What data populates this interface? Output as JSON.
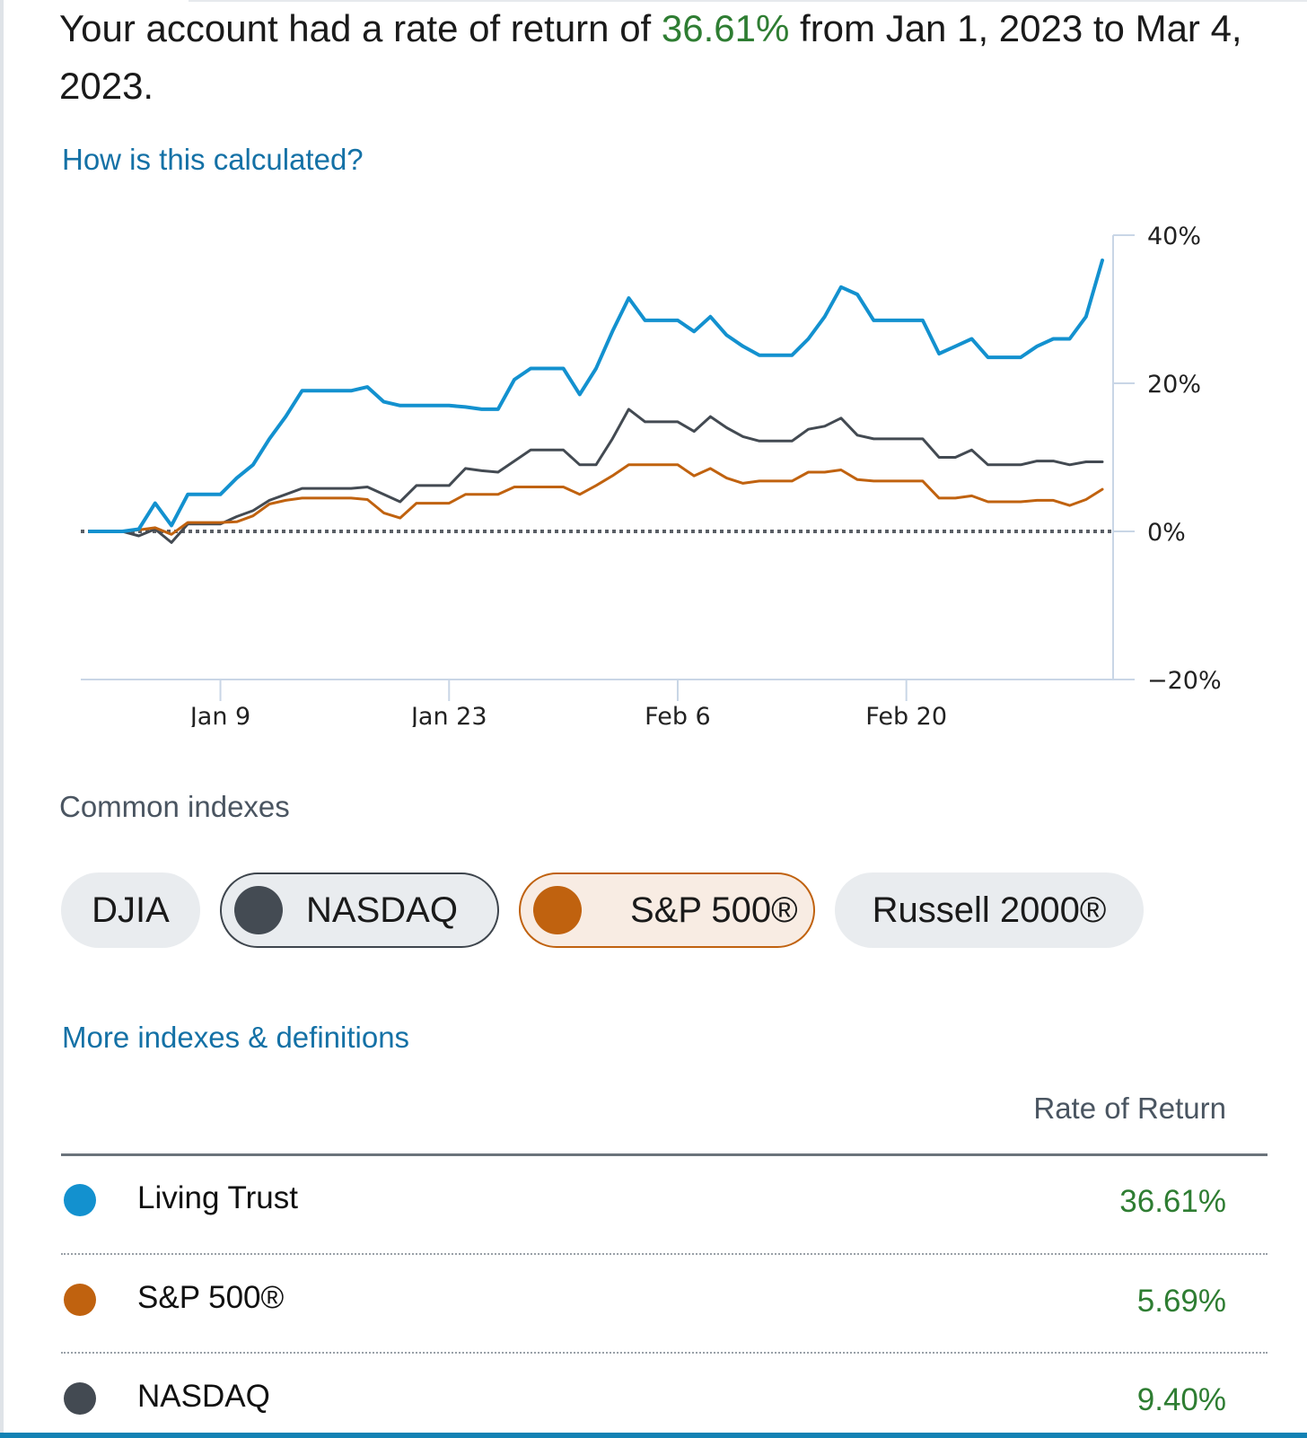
{
  "summary": {
    "prefix": "Your account had a rate of return of ",
    "rate": "36.61%",
    "suffix": " from Jan 1, 2023 to Mar 4, 2023."
  },
  "links": {
    "how_calculated": "How is this calculated?",
    "more_indexes": "More indexes & definitions"
  },
  "colors": {
    "living_trust": "#1391cf",
    "sp500": "#c0620f",
    "nasdaq": "#434a52",
    "positive": "#2e7d32",
    "link": "#1471a6"
  },
  "chart_data": {
    "type": "line",
    "ylim": [
      -20,
      40
    ],
    "yticks": [
      "40%",
      "20%",
      "0%",
      "−20%"
    ],
    "xticks": [
      "Jan 9",
      "Jan 23",
      "Feb 6",
      "Feb 20"
    ],
    "x": [
      "Jan 1",
      "Jan 2",
      "Jan 3",
      "Jan 4",
      "Jan 5",
      "Jan 6",
      "Jan 7",
      "Jan 8",
      "Jan 9",
      "Jan 10",
      "Jan 11",
      "Jan 12",
      "Jan 13",
      "Jan 14",
      "Jan 15",
      "Jan 16",
      "Jan 17",
      "Jan 18",
      "Jan 19",
      "Jan 20",
      "Jan 21",
      "Jan 22",
      "Jan 23",
      "Jan 24",
      "Jan 25",
      "Jan 26",
      "Jan 27",
      "Jan 28",
      "Jan 29",
      "Jan 30",
      "Jan 31",
      "Feb 1",
      "Feb 2",
      "Feb 3",
      "Feb 4",
      "Feb 5",
      "Feb 6",
      "Feb 7",
      "Feb 8",
      "Feb 9",
      "Feb 10",
      "Feb 11",
      "Feb 12",
      "Feb 13",
      "Feb 14",
      "Feb 15",
      "Feb 16",
      "Feb 17",
      "Feb 18",
      "Feb 19",
      "Feb 20",
      "Feb 21",
      "Feb 22",
      "Feb 23",
      "Feb 24",
      "Feb 25",
      "Feb 26",
      "Feb 27",
      "Feb 28",
      "Mar 1",
      "Mar 2",
      "Mar 3",
      "Mar 4"
    ],
    "series": [
      {
        "name": "Living Trust",
        "color": "#1391cf",
        "values": [
          0,
          0,
          0,
          0.3,
          3.8,
          0.8,
          5,
          5,
          5,
          7.2,
          9,
          12.5,
          15.5,
          19,
          19,
          19,
          19,
          19.5,
          17.5,
          17,
          17,
          17,
          17,
          16.8,
          16.5,
          16.5,
          20.5,
          22,
          22,
          22,
          18.5,
          22,
          27,
          31.5,
          28.5,
          28.5,
          28.5,
          27,
          29,
          26.5,
          25,
          23.8,
          23.8,
          23.8,
          26,
          29,
          33,
          32,
          28.5,
          28.5,
          28.5,
          28.5,
          24,
          25,
          26,
          23.5,
          23.5,
          23.5,
          25,
          26,
          26,
          29,
          36.61
        ]
      },
      {
        "name": "NASDAQ",
        "color": "#434a52",
        "values": [
          0,
          0,
          0,
          -0.6,
          0.3,
          -1.5,
          1,
          1,
          1,
          2,
          2.8,
          4.2,
          5,
          5.8,
          5.8,
          5.8,
          5.8,
          6,
          5,
          4,
          6.2,
          6.2,
          6.2,
          8.5,
          8.2,
          8,
          9.5,
          11,
          11,
          11,
          9,
          9,
          12.5,
          16.5,
          14.8,
          14.8,
          14.8,
          13.5,
          15.5,
          14,
          12.8,
          12.2,
          12.2,
          12.2,
          13.8,
          14.2,
          15.3,
          13,
          12.5,
          12.5,
          12.5,
          12.5,
          10,
          10,
          11,
          9,
          9,
          9,
          9.5,
          9.5,
          9,
          9.4,
          9.4
        ]
      },
      {
        "name": "S&P 500®",
        "color": "#c0620f",
        "values": [
          0,
          0,
          0,
          0.2,
          0.5,
          -0.4,
          1.2,
          1.2,
          1.2,
          1.3,
          2.1,
          3.7,
          4.2,
          4.5,
          4.5,
          4.5,
          4.5,
          4.3,
          2.5,
          1.8,
          3.8,
          3.8,
          3.8,
          5,
          5,
          5,
          6,
          6,
          6,
          6,
          5,
          6.2,
          7.5,
          9,
          9,
          9,
          9,
          7.5,
          8.5,
          7.2,
          6.5,
          6.8,
          6.8,
          6.8,
          8,
          8,
          8.3,
          7,
          6.8,
          6.8,
          6.8,
          6.8,
          4.5,
          4.5,
          4.8,
          4,
          4,
          4,
          4.2,
          4.2,
          3.5,
          4.3,
          5.69
        ]
      }
    ]
  },
  "indexes": {
    "title": "Common indexes",
    "chips": [
      "DJIA",
      "NASDAQ",
      "S&P 500®",
      "Russell 2000®"
    ]
  },
  "table": {
    "header": "Rate of Return",
    "rows": [
      {
        "name": "Living Trust",
        "value": "36.61%",
        "color": "#1391cf"
      },
      {
        "name": "S&P 500®",
        "value": "5.69%",
        "color": "#c0620f"
      },
      {
        "name": "NASDAQ",
        "value": "9.40%",
        "color": "#434a52"
      }
    ]
  }
}
